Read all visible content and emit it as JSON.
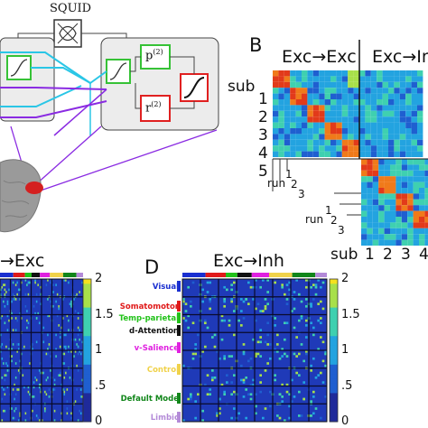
{
  "panel_a": {
    "squid_label": "SQUID",
    "p_label": "p",
    "p_sup": "(2)",
    "r_label": "r",
    "r_sup": "(2)"
  },
  "panel_b": {
    "letter": "B",
    "col_header_1": "Exc→Exc",
    "col_header_2": "Exc→Inh",
    "sub_label_row": "sub",
    "row_subjects": [
      "1",
      "2",
      "3",
      "4",
      "5"
    ],
    "run_label": "run",
    "run_numbers_1": [
      "1",
      "2",
      "3"
    ],
    "run_numbers_2": [
      "1",
      "2",
      "3"
    ],
    "sub_label_col": "sub",
    "col_subjects": [
      "1",
      "2",
      "3",
      "4"
    ]
  },
  "panel_c": {
    "title_fragment": "→Exc",
    "colorbar_ticks": [
      "2",
      "1.5",
      "1",
      ".5",
      "0"
    ]
  },
  "panel_d": {
    "letter": "D",
    "title": "Exc→Inh",
    "networks": [
      {
        "label": "Visual",
        "color": "#1a2fd0"
      },
      {
        "label": "Somatomotor",
        "color": "#e01a1a"
      },
      {
        "label": "Temp-parietal",
        "color": "#22c21a"
      },
      {
        "label": "d-Attention",
        "color": "#111111"
      },
      {
        "label": "v-Salience",
        "color": "#e020e0"
      },
      {
        "label": "Control",
        "color": "#f0d24a"
      },
      {
        "label": "Default Mode",
        "color": "#11861a"
      },
      {
        "label": "Limbic",
        "color": "#b38ad8"
      }
    ],
    "colorbar_ticks": [
      "2",
      "1.5",
      "1",
      ".5",
      "0"
    ]
  },
  "colors": {
    "hmap_bg": "#1f3ab8",
    "hmap_mid": "#23a3e0",
    "hmap_diag": "#e23a1a",
    "hmap_hot": "#f5e11f",
    "model_box": "#eaeaea",
    "cyan": "#2ac6e6",
    "purple": "#8a2be2",
    "green_box": "#36c236",
    "red_box": "#e02020",
    "brain_red": "#d42020",
    "brain_gray": "#9a9a9a"
  }
}
